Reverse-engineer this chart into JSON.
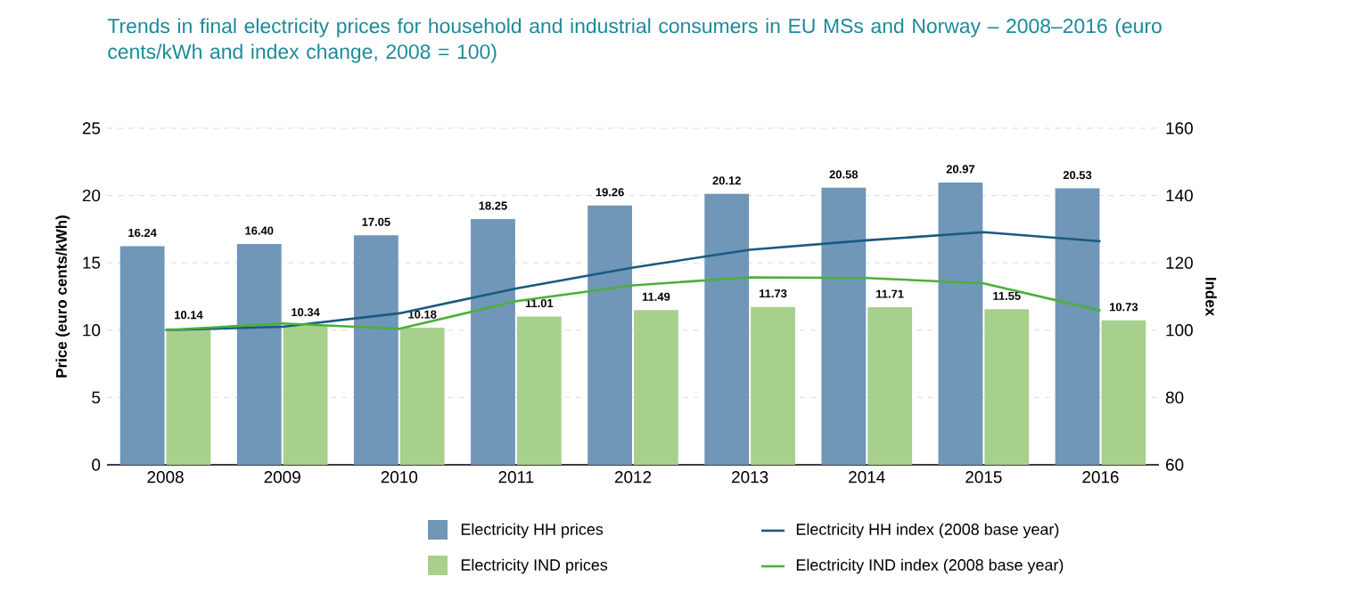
{
  "chart_data": {
    "type": "bar",
    "title": "Trends in final electricity prices for household and industrial consumers in EU MSs and Norway – 2008–2016 (euro cents/kWh and index change, 2008 = 100)",
    "categories": [
      "2008",
      "2009",
      "2010",
      "2011",
      "2012",
      "2013",
      "2014",
      "2015",
      "2016"
    ],
    "ylabel": "Price (euro cents/kWh)",
    "y2label": "Index",
    "ylim": [
      0,
      25
    ],
    "yticks": [
      0,
      5,
      10,
      15,
      20,
      25
    ],
    "y2lim": [
      60,
      160
    ],
    "y2ticks": [
      60,
      80,
      100,
      120,
      140,
      160
    ],
    "grid": "y",
    "legend": "bottom",
    "series": [
      {
        "name": "Electricity HH prices",
        "color": "#7096b8",
        "values": [
          16.24,
          16.4,
          17.05,
          18.25,
          19.26,
          20.12,
          20.58,
          20.97,
          20.53
        ],
        "value_labels": [
          "16.24",
          "16.40",
          "17.05",
          "18.25",
          "19.26",
          "20.12",
          "20.58",
          "20.97",
          "20.53"
        ]
      },
      {
        "name": "Electricity IND prices",
        "color": "#a8d08d",
        "values": [
          10.14,
          10.34,
          10.18,
          11.01,
          11.49,
          11.73,
          11.71,
          11.55,
          10.73
        ],
        "value_labels": [
          "10.14",
          "10.34",
          "10.18",
          "11.01",
          "11.49",
          "11.73",
          "11.71",
          "11.55",
          "10.73"
        ]
      },
      {
        "name": "Electricity HH index (2008 base year)",
        "type": "line",
        "axis": "y2",
        "color": "#1a5a80",
        "values": [
          100,
          101,
          105,
          112.4,
          118.6,
          123.9,
          126.7,
          129.1,
          126.4
        ]
      },
      {
        "name": "Electricity IND index (2008 base year)",
        "type": "line",
        "axis": "y2",
        "color": "#4caf3a",
        "values": [
          100,
          102,
          100.4,
          108.6,
          113.3,
          115.7,
          115.5,
          113.9,
          105.8
        ]
      }
    ]
  }
}
